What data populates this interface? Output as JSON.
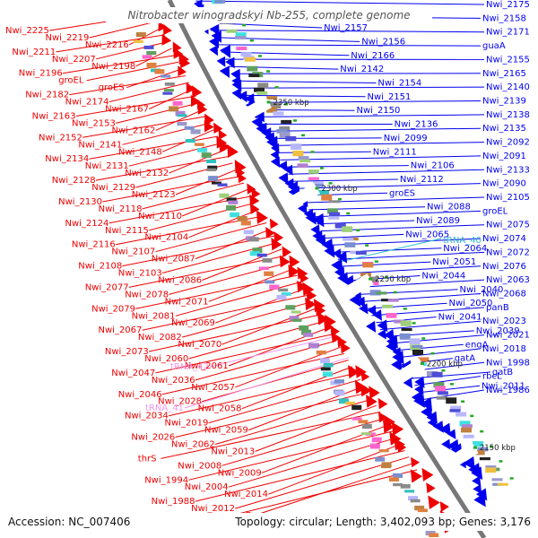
{
  "title": "Nitrobacter winogradskyi Nb-255, complete genome",
  "footer": {
    "accession": "Accession: NC_007406",
    "topology": "Topology: circular; Length: 3,402,093 bp; Genes: 3,176"
  },
  "colors": {
    "background": "#ffffff",
    "backbone": "#777777",
    "forward_strand": "#0000ee",
    "reverse_strand": "#ee0000",
    "trna": "#ee99ee",
    "trna_fwd": "#33bbcc",
    "title": "#555555"
  },
  "kbp_markers": [
    "2400 kbp",
    "2350 kbp",
    "2300 kbp",
    "2250 kbp",
    "2200 kbp",
    "2150 kbp"
  ],
  "right_labels": [
    "Nwi_2175",
    "Nwi_2173",
    "Nwi_2158",
    "Nwi_2157",
    "Nwi_2171",
    "Nwi_2156",
    "guaA",
    "Nwi_2166",
    "Nwi_2155",
    "Nwi_2142",
    "Nwi_2165",
    "Nwi_2154",
    "Nwi_2140",
    "Nwi_2151",
    "Nwi_2139",
    "Nwi_2150",
    "Nwi_2138",
    "Nwi_2136",
    "Nwi_2135",
    "Nwi_2099",
    "Nwi_2092",
    "Nwi_2111",
    "Nwi_2091",
    "Nwi_2106",
    "Nwi_2133",
    "Nwi_2112",
    "Nwi_2090",
    "groES",
    "Nwi_2105",
    "Nwi_2088",
    "groEL",
    "Nwi_2089",
    "Nwi_2075",
    "Nwi_2065",
    "Nwi_2074",
    "Nwi_2064",
    "Nwi_2072",
    "Nwi_2051",
    "Nwi_2076",
    "Nwi_2044",
    "Nwi_2063",
    "Nwi_2040",
    "Nwi_2068",
    "Nwi_2050",
    "panB",
    "Nwi_2041",
    "Nwi_2023",
    "Nwi_2039",
    "Nwi_2021",
    "engA",
    "Nwi_2018",
    "gatA",
    "Nwi_1998",
    "gatB",
    "rbcL",
    "Nwi_2011",
    "Nwi_1986"
  ],
  "right_trna_labels": [
    "tRNA_40"
  ],
  "left_labels": [
    "Nwi_2225",
    "Nwi_2219",
    "Nwi_2216",
    "Nwi_2211",
    "Nwi_2207",
    "Nwi_2198",
    "Nwi_2196",
    "groEL",
    "groES",
    "Nwi_2182",
    "Nwi_2174",
    "Nwi_2167",
    "Nwi_2163",
    "Nwi_2153",
    "Nwi_2162",
    "Nwi_2152",
    "Nwi_2141",
    "Nwi_2148",
    "Nwi_2134",
    "Nwi_2131",
    "Nwi_2132",
    "Nwi_2128",
    "Nwi_2129",
    "Nwi_2123",
    "Nwi_2130",
    "Nwi_2118",
    "Nwi_2110",
    "Nwi_2124",
    "Nwi_2115",
    "Nwi_2104",
    "Nwi_2116",
    "Nwi_2107",
    "Nwi_2087",
    "Nwi_2108",
    "Nwi_2103",
    "Nwi_2086",
    "Nwi_2077",
    "Nwi_2078",
    "Nwi_2071",
    "Nwi_2079",
    "Nwi_2081",
    "Nwi_2069",
    "Nwi_2067",
    "Nwi_2082",
    "Nwi_2070",
    "Nwi_2073",
    "Nwi_2060",
    "Nwi_2061",
    "Nwi_2047",
    "Nwi_2036",
    "Nwi_2057",
    "Nwi_2046",
    "Nwi_2028",
    "Nwi_2058",
    "Nwi_2034",
    "Nwi_2019",
    "Nwi_2059",
    "Nwi_2026",
    "Nwi_2062",
    "Nwi_2013",
    "thrS",
    "Nwi_2008",
    "Nwi_2009",
    "Nwi_1994",
    "Nwi_2004",
    "Nwi_2014",
    "Nwi_1988",
    "Nwi_2012",
    "pyrB",
    "Nwi_2010"
  ],
  "left_trna_labels": [
    "tRNA_42",
    "tRNA_41"
  ]
}
